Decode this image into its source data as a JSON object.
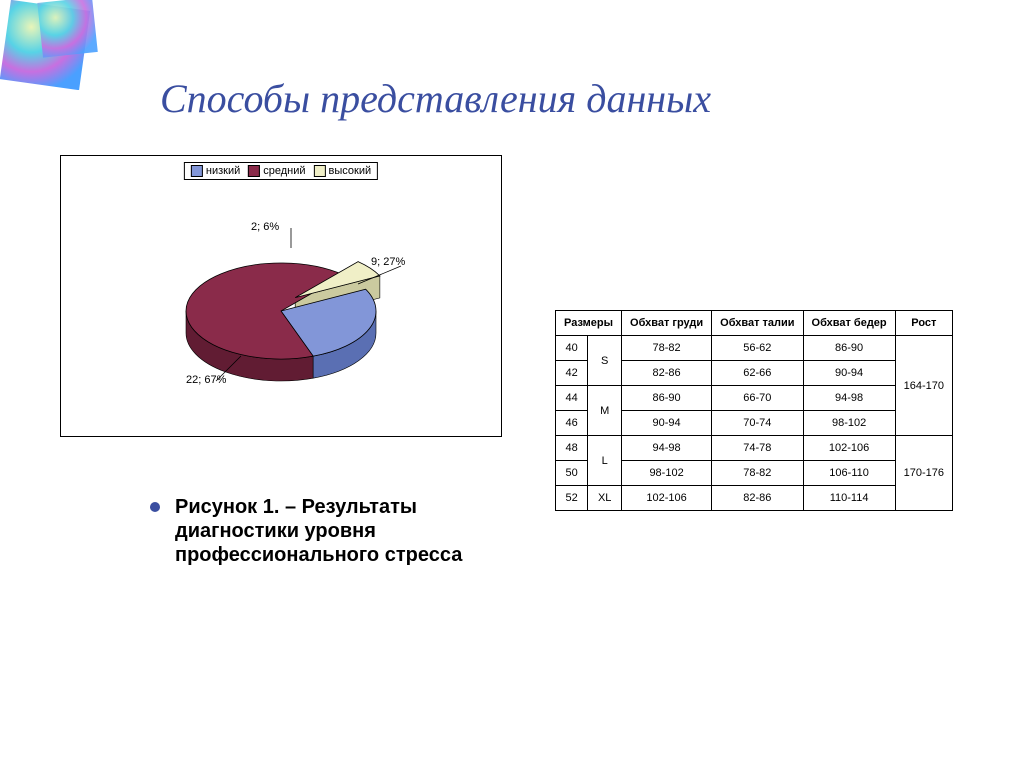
{
  "title": "Способы представления данных",
  "corner_gradient": {
    "c1": "#e9f5b8",
    "c2": "#57d3e6",
    "c3": "#c770e0",
    "c4": "#4aa0ff"
  },
  "chart": {
    "type": "pie-3d-exploded",
    "legend": [
      {
        "label": "низкий",
        "color": "#8296d8"
      },
      {
        "label": "средний",
        "color": "#8a2b4a"
      },
      {
        "label": "высокий",
        "color": "#f0efc7"
      }
    ],
    "slices": [
      {
        "key": "низкий",
        "count": 9,
        "percent": 27,
        "color": "#8296d8",
        "side": "#5a6fb3",
        "label": "9; 27%"
      },
      {
        "key": "средний",
        "count": 22,
        "percent": 67,
        "color": "#8a2b4a",
        "side": "#611c33",
        "label": "22; 67%"
      },
      {
        "key": "высокий",
        "count": 2,
        "percent": 6,
        "color": "#f0efc7",
        "side": "#cbca9f",
        "label": "2; 6%"
      }
    ],
    "border_color": "#000000",
    "background_color": "#ffffff",
    "label_fontsize": 11
  },
  "caption": "Рисунок 1. – Результаты диагностики уровня профессионального стресса",
  "bullet_color": "#3a4ea0",
  "title_color": "#3a4ea0",
  "table": {
    "type": "table",
    "columns": [
      "Размеры",
      "",
      "Обхват груди",
      "Обхват талии",
      "Обхват бедер",
      "Рост"
    ],
    "rows": [
      {
        "num": "40",
        "size": "S",
        "chest": "78-82",
        "waist": "56-62",
        "hip": "86-90",
        "height": "164-170",
        "size_rowspan": 2,
        "height_rowspan": 4
      },
      {
        "num": "42",
        "size": "",
        "chest": "82-86",
        "waist": "62-66",
        "hip": "90-94",
        "height": ""
      },
      {
        "num": "44",
        "size": "M",
        "chest": "86-90",
        "waist": "66-70",
        "hip": "94-98",
        "height": "",
        "size_rowspan": 2
      },
      {
        "num": "46",
        "size": "",
        "chest": "90-94",
        "waist": "70-74",
        "hip": "98-102",
        "height": ""
      },
      {
        "num": "48",
        "size": "L",
        "chest": "94-98",
        "waist": "74-78",
        "hip": "102-106",
        "height": "170-176",
        "size_rowspan": 2,
        "height_rowspan": 3
      },
      {
        "num": "50",
        "size": "",
        "chest": "98-102",
        "waist": "78-82",
        "hip": "106-110",
        "height": ""
      },
      {
        "num": "52",
        "size": "XL",
        "chest": "102-106",
        "waist": "82-86",
        "hip": "110-114",
        "height": "",
        "size_rowspan": 1
      }
    ],
    "header_fontsize": 11,
    "cell_fontsize": 11,
    "border_color": "#000000"
  }
}
